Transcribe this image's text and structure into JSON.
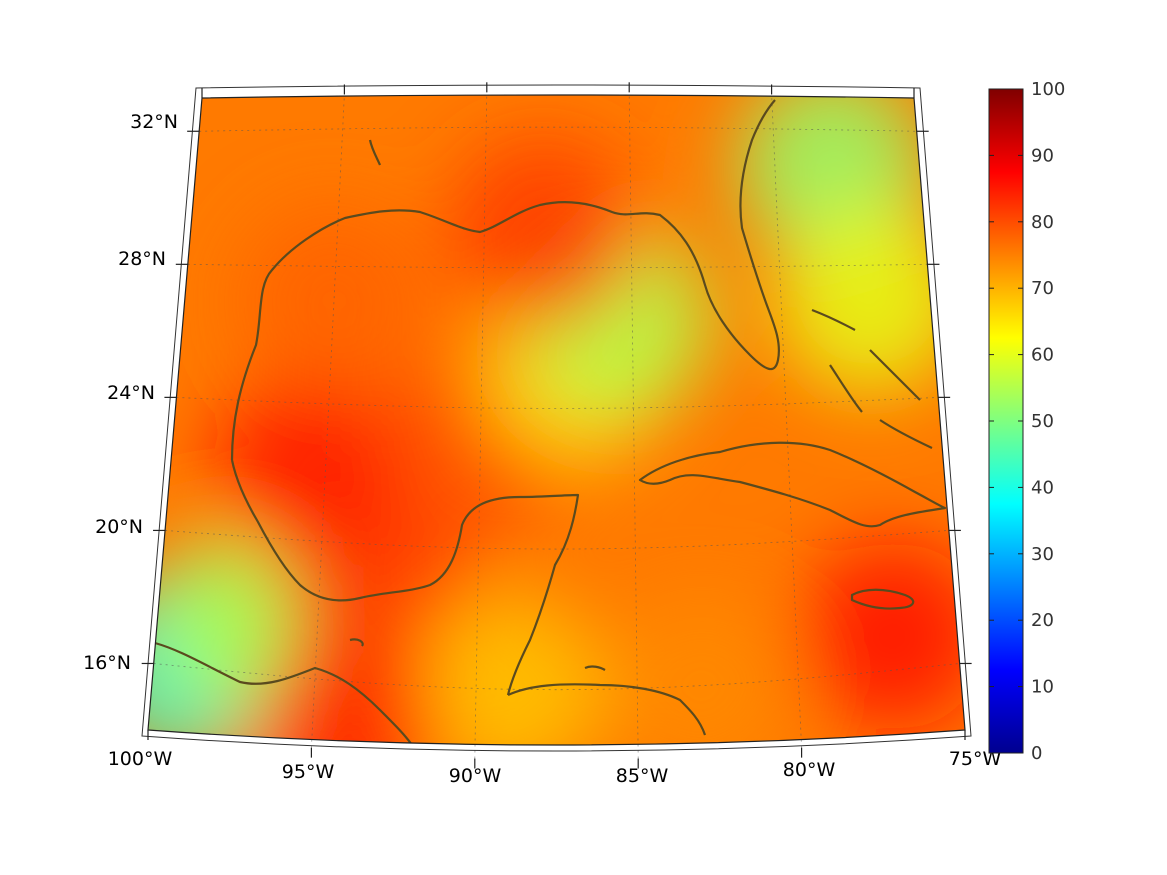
{
  "chart_data": {
    "type": "heatmap",
    "title": "",
    "projection": "lambert-conformal-conic",
    "region": "Gulf of Mexico and Caribbean",
    "lon_range": [
      -100,
      -75
    ],
    "lat_range": [
      14,
      33
    ],
    "lon_ticks": [
      "100°W",
      "95°W",
      "90°W",
      "85°W",
      "80°W",
      "75°W"
    ],
    "lat_ticks": [
      "32°N",
      "28°N",
      "24°N",
      "20°N",
      "16°N"
    ],
    "grid": true,
    "colormap": "jet",
    "colorbar": {
      "min": 0,
      "max": 100,
      "ticks": [
        "100",
        "90",
        "80",
        "70",
        "60",
        "50",
        "40",
        "30",
        "20",
        "10",
        "0"
      ],
      "placement": "right"
    },
    "coastline_color": "#5a4a1e",
    "field_samples": [
      {
        "lon": -99,
        "lat": 16,
        "value": 42
      },
      {
        "lon": -97,
        "lat": 17.5,
        "value": 55
      },
      {
        "lon": -93,
        "lat": 18.5,
        "value": 82
      },
      {
        "lon": -95.5,
        "lat": 22,
        "value": 86
      },
      {
        "lon": -90,
        "lat": 23,
        "value": 80
      },
      {
        "lon": -87,
        "lat": 25,
        "value": 66
      },
      {
        "lon": -85.5,
        "lat": 26.5,
        "value": 55
      },
      {
        "lon": -88,
        "lat": 29,
        "value": 82
      },
      {
        "lon": -95,
        "lat": 27,
        "value": 78
      },
      {
        "lon": -78,
        "lat": 31,
        "value": 52
      },
      {
        "lon": -77,
        "lat": 27,
        "value": 60
      },
      {
        "lon": -77,
        "lat": 17,
        "value": 86
      },
      {
        "lon": -83,
        "lat": 16,
        "value": 74
      },
      {
        "lon": -89,
        "lat": 16,
        "value": 68
      },
      {
        "lon": -94,
        "lat": 14.5,
        "value": 84
      }
    ]
  }
}
